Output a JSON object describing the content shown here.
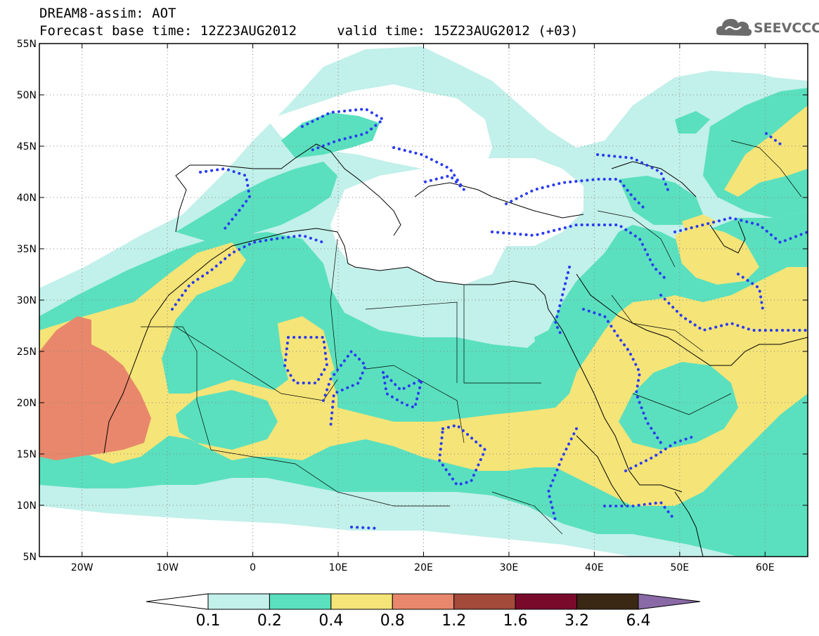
{
  "header": {
    "title_line1": "DREAM8-assim: AOT",
    "title_line2": "Forecast base time: 12Z23AUG2012     valid time: 15Z23AUG2012 (+03)"
  },
  "logo": {
    "text": "SEEVCCC",
    "icon": "cloud-icon"
  },
  "map": {
    "lon_range": [
      -25,
      65
    ],
    "lat_range": [
      5,
      55
    ],
    "lon_ticks": [
      {
        "value": -20,
        "label": "20W"
      },
      {
        "value": -10,
        "label": "10W"
      },
      {
        "value": 0,
        "label": "0"
      },
      {
        "value": 10,
        "label": "10E"
      },
      {
        "value": 20,
        "label": "20E"
      },
      {
        "value": 30,
        "label": "30E"
      },
      {
        "value": 40,
        "label": "40E"
      },
      {
        "value": 50,
        "label": "50E"
      },
      {
        "value": 60,
        "label": "60E"
      }
    ],
    "lat_ticks": [
      {
        "value": 5,
        "label": "5N"
      },
      {
        "value": 10,
        "label": "10N"
      },
      {
        "value": 15,
        "label": "15N"
      },
      {
        "value": 20,
        "label": "20N"
      },
      {
        "value": 25,
        "label": "25N"
      },
      {
        "value": 30,
        "label": "30N"
      },
      {
        "value": 35,
        "label": "35N"
      },
      {
        "value": 40,
        "label": "40N"
      },
      {
        "value": 45,
        "label": "45N"
      },
      {
        "value": 50,
        "label": "50N"
      },
      {
        "value": 55,
        "label": "55N"
      }
    ],
    "grid": "dotted"
  },
  "colorbar": {
    "labels": [
      "0.1",
      "0.2",
      "0.4",
      "0.8",
      "1.2",
      "1.6",
      "3.2",
      "6.4"
    ],
    "colors": [
      "#ffffff",
      "#c2f0ea",
      "#5ae0be",
      "#f5e478",
      "#e8876b",
      "#a34a3a",
      "#7a0a2c",
      "#3a2814",
      "#8a6aa6"
    ]
  }
}
